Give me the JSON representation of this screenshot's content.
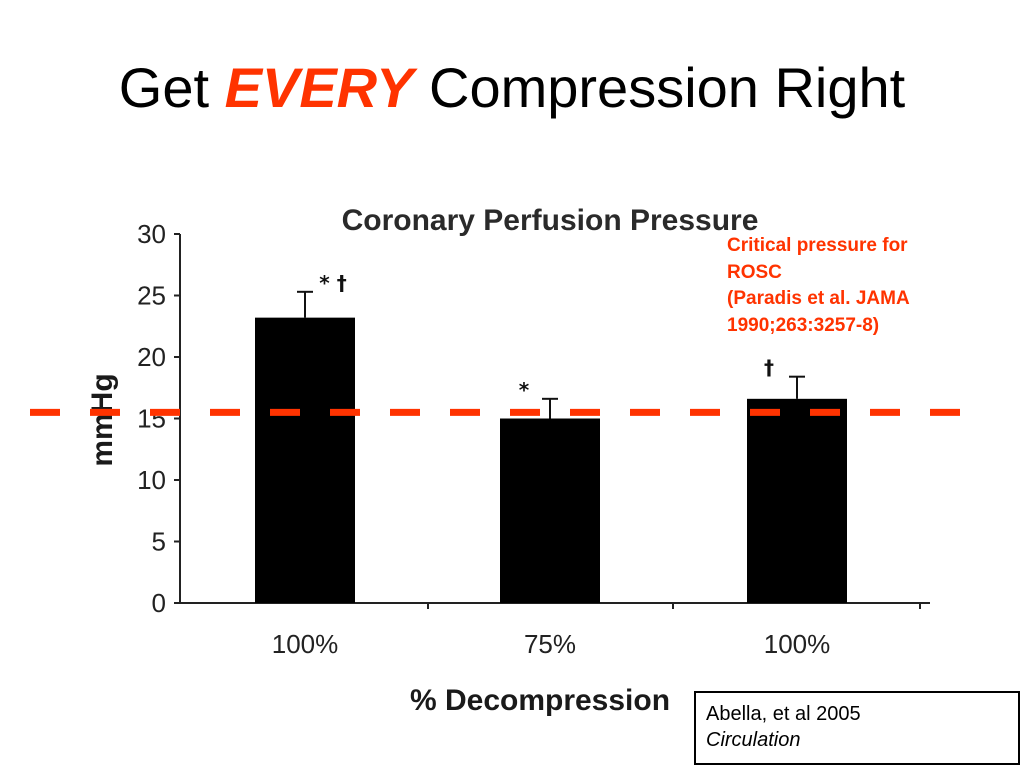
{
  "slide": {
    "title_prefix": "Get",
    "title_accent": "EVERY",
    "title_suffix": "Compression Right"
  },
  "annotation": {
    "lines": [
      "Critical pressure for",
      "ROSC",
      "(Paradis et al. JAMA",
      "1990;263:3257-8)"
    ],
    "color": "#ff3300"
  },
  "citation": {
    "authors": "Abella, et al 2005",
    "journal": "Circulation"
  },
  "chart_data": {
    "type": "bar",
    "title": "Coronary Perfusion Pressure",
    "xlabel": "% Decompression",
    "ylabel": "mmHg",
    "categories": [
      "100%",
      "75%",
      "100%"
    ],
    "values": [
      23.2,
      15.0,
      16.6
    ],
    "error": [
      2.1,
      1.6,
      1.8
    ],
    "markers": [
      "* †",
      "*",
      "†"
    ],
    "ylim": [
      0,
      30
    ],
    "yticks": [
      0,
      5,
      10,
      15,
      20,
      25,
      30
    ],
    "reference_line": {
      "value": 15.5,
      "style": "dashed",
      "color": "#ff3300"
    },
    "bar_color": "#000000",
    "grid": false,
    "legend": "none"
  }
}
